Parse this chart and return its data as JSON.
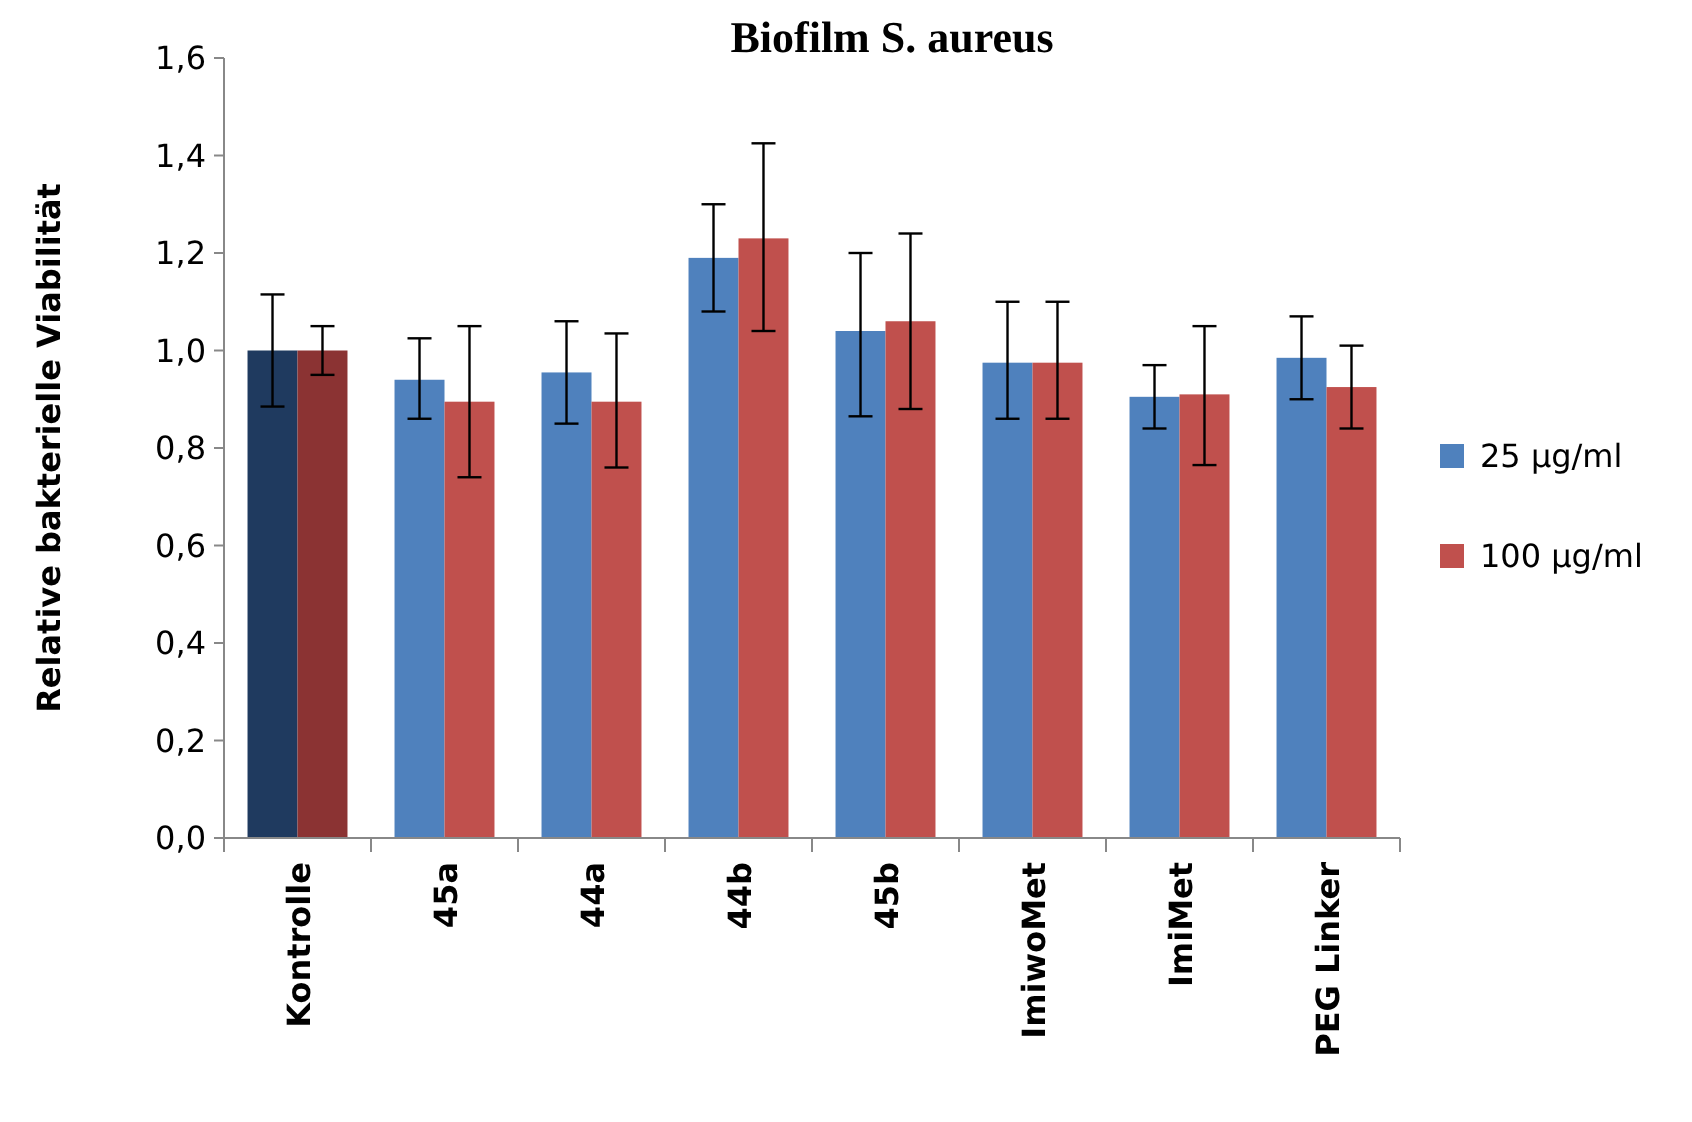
{
  "chart_data": {
    "type": "bar",
    "title": "Biofilm S. aureus",
    "ylabel": "Relative  bakterielle Viabilität",
    "categories": [
      "Kontrolle",
      "45a",
      "44a",
      "44b",
      "45b",
      "ImiwoMet",
      "ImiMet",
      "PEG Linker"
    ],
    "series": [
      {
        "name": "25 µg/ml",
        "color": "#4f81bd",
        "colors": [
          "#1f3a5f",
          "#4f81bd",
          "#4f81bd",
          "#4f81bd",
          "#4f81bd",
          "#4f81bd",
          "#4f81bd",
          "#4f81bd"
        ],
        "values": [
          1.0,
          0.94,
          0.955,
          1.19,
          1.04,
          0.975,
          0.905,
          0.985
        ],
        "errors": [
          [
            0.885,
            1.115
          ],
          [
            0.86,
            1.025
          ],
          [
            0.85,
            1.06
          ],
          [
            1.08,
            1.3
          ],
          [
            0.865,
            1.2
          ],
          [
            0.86,
            1.1
          ],
          [
            0.84,
            0.97
          ],
          [
            0.9,
            1.07
          ]
        ]
      },
      {
        "name": "100 µg/ml",
        "color": "#c0504d",
        "colors": [
          "#8b3333",
          "#c0504d",
          "#c0504d",
          "#c0504d",
          "#c0504d",
          "#c0504d",
          "#c0504d",
          "#c0504d"
        ],
        "values": [
          1.0,
          0.895,
          0.895,
          1.23,
          1.06,
          0.975,
          0.91,
          0.925
        ],
        "errors": [
          [
            0.95,
            1.05
          ],
          [
            0.74,
            1.05
          ],
          [
            0.76,
            1.035
          ],
          [
            1.04,
            1.425
          ],
          [
            0.88,
            1.24
          ],
          [
            0.86,
            1.1
          ],
          [
            0.765,
            1.05
          ],
          [
            0.84,
            1.01
          ]
        ]
      }
    ],
    "ylim": [
      0,
      1.6
    ],
    "yticks": [
      {
        "value": 0,
        "label": "0,0"
      },
      {
        "value": 0.2,
        "label": "0,2"
      },
      {
        "value": 0.4,
        "label": "0,4"
      },
      {
        "value": 0.6,
        "label": "0,6"
      },
      {
        "value": 0.8,
        "label": "0,8"
      },
      {
        "value": 1,
        "label": "1,0"
      },
      {
        "value": 1.2,
        "label": "1,2"
      },
      {
        "value": 1.4,
        "label": "1,4"
      },
      {
        "value": 1.6,
        "label": "1,6"
      }
    ],
    "grid": false,
    "legend": "right"
  }
}
